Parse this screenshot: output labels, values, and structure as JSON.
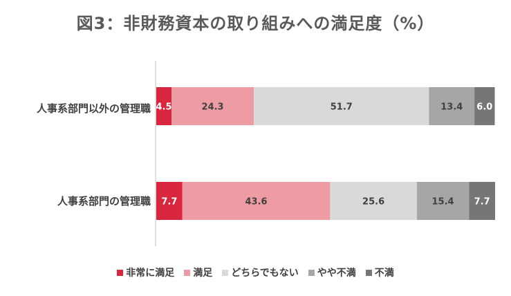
{
  "chart_data": {
    "type": "bar",
    "orientation": "horizontal",
    "stacked": true,
    "title": "図3：非財務資本の取り組みへの満足度（%）",
    "xlim": [
      0,
      100
    ],
    "categories": [
      "人事系部門以外の管理職",
      "人事系部門の管理職"
    ],
    "series": [
      {
        "name": "非常に満足",
        "color": "#d7263d",
        "values": [
          4.5,
          7.7
        ],
        "labels": [
          "4.5",
          "7.7"
        ]
      },
      {
        "name": "満足",
        "color": "#ee9ca4",
        "values": [
          24.3,
          43.6
        ],
        "labels": [
          "24.3",
          "43.6"
        ]
      },
      {
        "name": "どちらでもない",
        "color": "#d9d9d9",
        "values": [
          51.7,
          25.6
        ],
        "labels": [
          "51.7",
          "25.6"
        ]
      },
      {
        "name": "やや不満",
        "color": "#a6a6a6",
        "values": [
          13.4,
          15.4
        ],
        "labels": [
          "13.4",
          "15.4"
        ]
      },
      {
        "name": "不満",
        "color": "#767676",
        "values": [
          6.0,
          7.7
        ],
        "labels": [
          "6.0",
          "7.7"
        ]
      }
    ],
    "legend_position": "bottom",
    "grid": false
  }
}
